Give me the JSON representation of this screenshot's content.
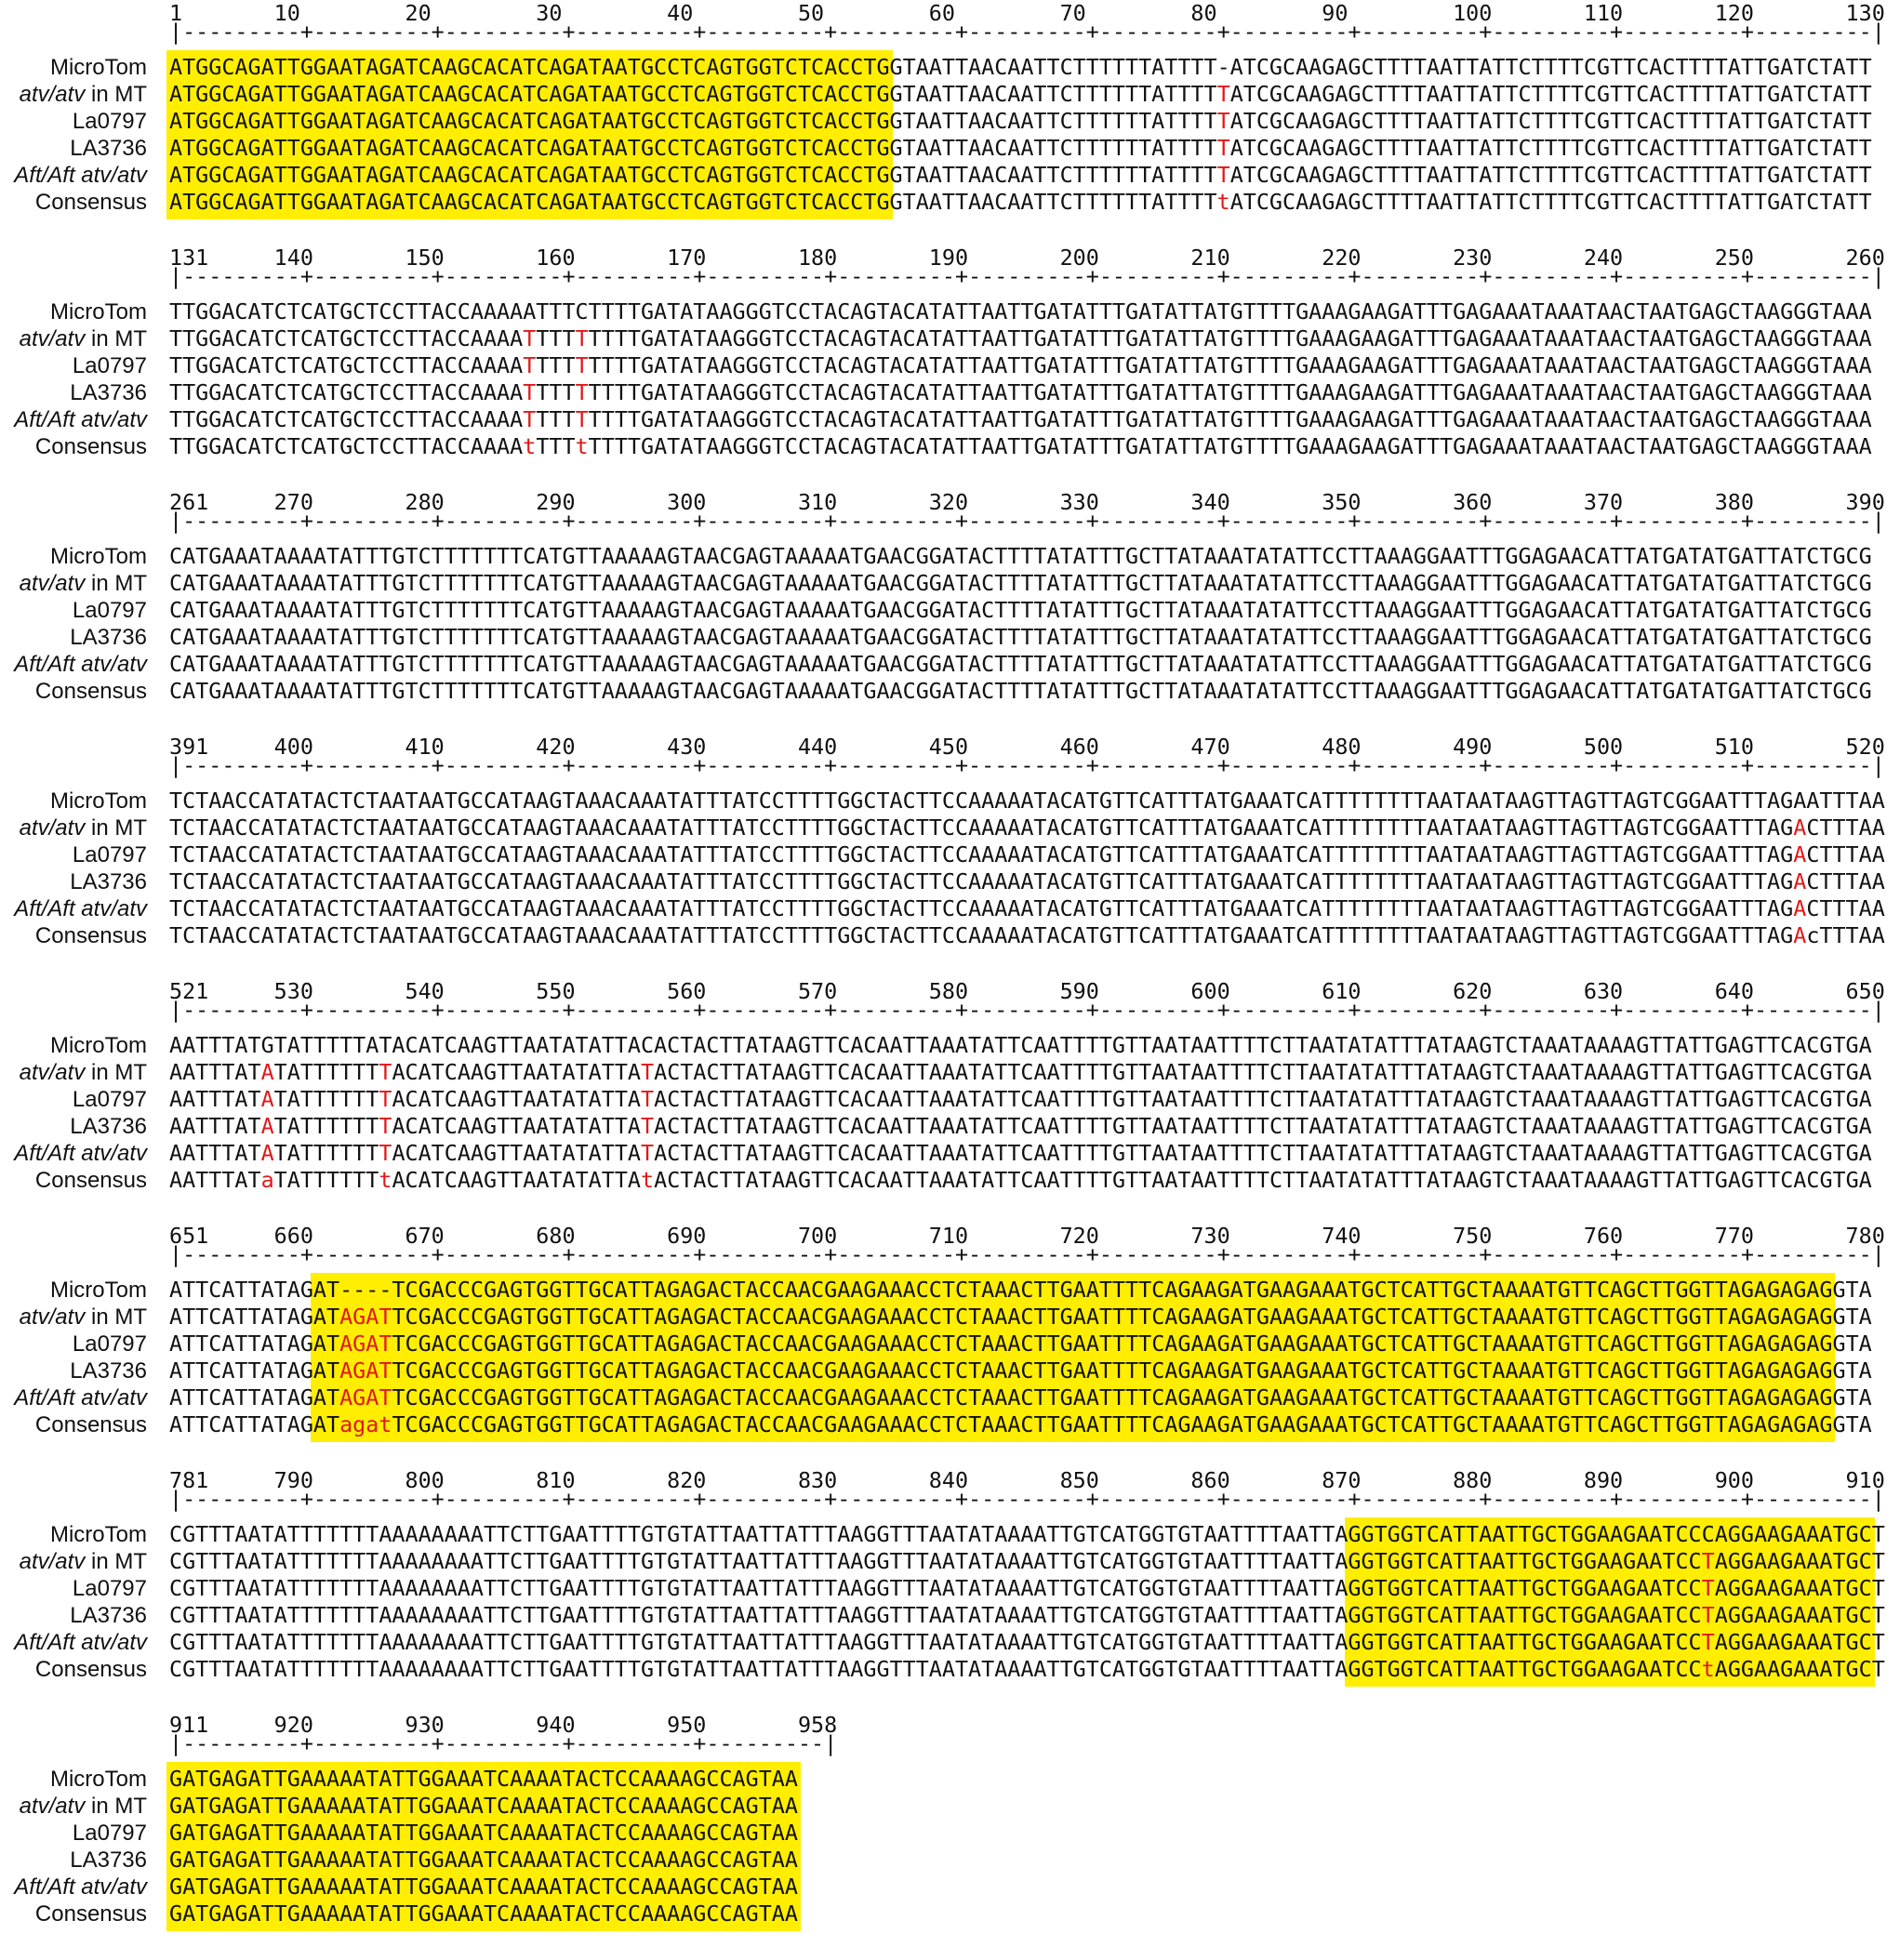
{
  "colors": {
    "highlight": "#ffee00",
    "mismatch": "#e01818",
    "text": "#111111"
  },
  "labels": [
    {
      "name": "MicroTom",
      "rest": ""
    },
    {
      "name": "atv/atv",
      "rest": " in MT"
    },
    {
      "name": "La0797",
      "rest": ""
    },
    {
      "name": "LA3736",
      "rest": ""
    },
    {
      "name": "Aft/Aft atv/atv",
      "rest": ""
    },
    {
      "name": "Consensus",
      "rest": ""
    }
  ],
  "blocks": [
    {
      "numbers": "1       10        20        30        40        50        60        70        80        90        100       110       120       130",
      "ruler": "|---------+---------+---------+---------+---------+---------+---------+---------+---------+---------+---------+---------+---------|",
      "rows": [
        "ATGGCAGATTGGAATAGATCAAGCACATCAGATAATGCCTCAGTGGTCTCACCTGGTAATTAACAATTCTTTTTTATTTT-ATCGCAAGAGCTTTTAATTATTCTTTTCGTTCACTTTTATTGATCTATT",
        "ATGGCAGATTGGAATAGATCAAGCACATCAGATAATGCCTCAGTGGTCTCACCTGGTAATTAACAATTCTTTTTTATTTTTATCGCAAGAGCTTTTAATTATTCTTTTCGTTCACTTTTATTGATCTATT",
        "ATGGCAGATTGGAATAGATCAAGCACATCAGATAATGCCTCAGTGGTCTCACCTGGTAATTAACAATTCTTTTTTATTTTTATCGCAAGAGCTTTTAATTATTCTTTTCGTTCACTTTTATTGATCTATT",
        "ATGGCAGATTGGAATAGATCAAGCACATCAGATAATGCCTCAGTGGTCTCACCTGGTAATTAACAATTCTTTTTTATTTTTATCGCAAGAGCTTTTAATTATTCTTTTCGTTCACTTTTATTGATCTATT",
        "ATGGCAGATTGGAATAGATCAAGCACATCAGATAATGCCTCAGTGGTCTCACCTGGTAATTAACAATTCTTTTTTATTTTTATCGCAAGAGCTTTTAATTATTCTTTTCGTTCACTTTTATTGATCTATT",
        "ATGGCAGATTGGAATAGATCAAGCACATCAGATAATGCCTCAGTGGTCTCACCTGGTAATTAACAATTCTTTTTTATTTTtATCGCAAGAGCTTTTAATTATTCTTTTCGTTCACTTTTATTGATCTATT"
      ],
      "red_cols": [
        80
      ],
      "exons": [
        [
          0,
          55
        ]
      ]
    },
    {
      "numbers": "131     140       150       160       170       180       190       200       210       220       230       240       250       260",
      "ruler": "|---------+---------+---------+---------+---------+---------+---------+---------+---------+---------+---------+---------+---------|",
      "rows": [
        "TTGGACATCTCATGCTCCTTACCAAAAATTTCTTTTGATATAAGGGTCCTACAGTACATATTAATTGATATTTGATATTATGTTTTGAAAGAAGATTTGAGAAATAAATAACTAATGAGCTAAGGGTAAA",
        "TTGGACATCTCATGCTCCTTACCAAAATTTTTTTTTGATATAAGGGTCCTACAGTACATATTAATTGATATTTGATATTATGTTTTGAAAGAAGATTTGAGAAATAAATAACTAATGAGCTAAGGGTAAA",
        "TTGGACATCTCATGCTCCTTACCAAAATTTTTTTTTGATATAAGGGTCCTACAGTACATATTAATTGATATTTGATATTATGTTTTGAAAGAAGATTTGAGAAATAAATAACTAATGAGCTAAGGGTAAA",
        "TTGGACATCTCATGCTCCTTACCAAAATTTTTTTTTGATATAAGGGTCCTACAGTACATATTAATTGATATTTGATATTATGTTTTGAAAGAAGATTTGAGAAATAAATAACTAATGAGCTAAGGGTAAA",
        "TTGGACATCTCATGCTCCTTACCAAAATTTTTTTTTGATATAAGGGTCCTACAGTACATATTAATTGATATTTGATATTATGTTTTGAAAGAAGATTTGAGAAATAAATAACTAATGAGCTAAGGGTAAA",
        "TTGGACATCTCATGCTCCTTACCAAAAtTTTtTTTTGATATAAGGGTCCTACAGTACATATTAATTGATATTTGATATTATGTTTTGAAAGAAGATTTGAGAAATAAATAACTAATGAGCTAAGGGTAAA"
      ],
      "red_cols": [
        27,
        31
      ],
      "exons": []
    },
    {
      "numbers": "261     270       280       290       300       310       320       330       340       350       360       370       380       390",
      "ruler": "|---------+---------+---------+---------+---------+---------+---------+---------+---------+---------+---------+---------+---------|",
      "rows": [
        "CATGAAATAAAATATTTGTCTTTTTTTCATGTTAAAAAGTAACGAGTAAAAATGAACGGATACTTTTATATTTGCTTATAAATATATTCCTTAAAGGAATTTGGAGAACATTATGATATGATTATCTGCG",
        "CATGAAATAAAATATTTGTCTTTTTTTCATGTTAAAAAGTAACGAGTAAAAATGAACGGATACTTTTATATTTGCTTATAAATATATTCCTTAAAGGAATTTGGAGAACATTATGATATGATTATCTGCG",
        "CATGAAATAAAATATTTGTCTTTTTTTCATGTTAAAAAGTAACGAGTAAAAATGAACGGATACTTTTATATTTGCTTATAAATATATTCCTTAAAGGAATTTGGAGAACATTATGATATGATTATCTGCG",
        "CATGAAATAAAATATTTGTCTTTTTTTCATGTTAAAAAGTAACGAGTAAAAATGAACGGATACTTTTATATTTGCTTATAAATATATTCCTTAAAGGAATTTGGAGAACATTATGATATGATTATCTGCG",
        "CATGAAATAAAATATTTGTCTTTTTTTCATGTTAAAAAGTAACGAGTAAAAATGAACGGATACTTTTATATTTGCTTATAAATATATTCCTTAAAGGAATTTGGAGAACATTATGATATGATTATCTGCG",
        "CATGAAATAAAATATTTGTCTTTTTTTCATGTTAAAAAGTAACGAGTAAAAATGAACGGATACTTTTATATTTGCTTATAAATATATTCCTTAAAGGAATTTGGAGAACATTATGATATGATTATCTGCG"
      ],
      "red_cols": [],
      "exons": []
    },
    {
      "numbers": "391     400       410       420       430       440       450       460       470       480       490       500       510       520",
      "ruler": "|---------+---------+---------+---------+---------+---------+---------+---------+---------+---------+---------+---------+---------|",
      "rows": [
        "TCTAACCATATACTCTAATAATGCCATAAGTAAACAAATATTTATCCTTTTGGCTACTTCCAAAAATACATGTTCATTTATGAAATCATTTTTTTTAATAATAAGTTAGTTAGTCGGAATTTAGAATTTAA",
        "TCTAACCATATACTCTAATAATGCCATAAGTAAACAAATATTTATCCTTTTGGCTACTTCCAAAAATACATGTTCATTTATGAAATCATTTTTTTTAATAATAAGTTAGTTAGTCGGAATTTAGACTTTAA",
        "TCTAACCATATACTCTAATAATGCCATAAGTAAACAAATATTTATCCTTTTGGCTACTTCCAAAAATACATGTTCATTTATGAAATCATTTTTTTTAATAATAAGTTAGTTAGTCGGAATTTAGACTTTAA",
        "TCTAACCATATACTCTAATAATGCCATAAGTAAACAAATATTTATCCTTTTGGCTACTTCCAAAAATACATGTTCATTTATGAAATCATTTTTTTTAATAATAAGTTAGTTAGTCGGAATTTAGACTTTAA",
        "TCTAACCATATACTCTAATAATGCCATAAGTAAACAAATATTTATCCTTTTGGCTACTTCCAAAAATACATGTTCATTTATGAAATCATTTTTTTTAATAATAAGTTAGTTAGTCGGAATTTAGACTTTAA",
        "TCTAACCATATACTCTAATAATGCCATAAGTAAACAAATATTTATCCTTTTGGCTACTTCCAAAAATACATGTTCATTTATGAAATCATTTTTTTTAATAATAAGTTAGTTAGTCGGAATTTAGAcTTTAA"
      ],
      "red_cols": [
        124
      ],
      "exons": []
    },
    {
      "numbers": "521     530       540       550       560       570       580       590       600       610       620       630       640       650",
      "ruler": "|---------+---------+---------+---------+---------+---------+---------+---------+---------+---------+---------+---------+---------|",
      "rows": [
        "AATTTATGTATTTTTATACATCAAGTTAATATATTACACTACTTATAAGTTCACAATTAAATATTCAATTTTGTTAATAATTTTCTTAATATATTTATAAGTCTAAATAAAAGTTATTGAGTTCACGTGA",
        "AATTTATATATTTTTTTACATCAAGTTAATATATTATACTACTTATAAGTTCACAATTAAATATTCAATTTTGTTAATAATTTTCTTAATATATTTATAAGTCTAAATAAAAGTTATTGAGTTCACGTGA",
        "AATTTATATATTTTTTTACATCAAGTTAATATATTATACTACTTATAAGTTCACAATTAAATATTCAATTTTGTTAATAATTTTCTTAATATATTTATAAGTCTAAATAAAAGTTATTGAGTTCACGTGA",
        "AATTTATATATTTTTTTACATCAAGTTAATATATTATACTACTTATAAGTTCACAATTAAATATTCAATTTTGTTAATAATTTTCTTAATATATTTATAAGTCTAAATAAAAGTTATTGAGTTCACGTGA",
        "AATTTATATATTTTTTTACATCAAGTTAATATATTATACTACTTATAAGTTCACAATTAAATATTCAATTTTGTTAATAATTTTCTTAATATATTTATAAGTCTAAATAAAAGTTATTGAGTTCACGTGA",
        "AATTTATaTATTTTTTtACATCAAGTTAATATATTAtACTACTTATAAGTTCACAATTAAATATTCAATTTTGTTAATAATTTTCTTAATATATTTATAAGTCTAAATAAAAGTTATTGAGTTCACGTGA"
      ],
      "red_cols": [
        7,
        16,
        36
      ],
      "exons": []
    },
    {
      "numbers": "651     660       670       680       690       700       710       720       730       740       750       760       770       780",
      "ruler": "|---------+---------+---------+---------+---------+---------+---------+---------+---------+---------+---------+---------+---------|",
      "rows": [
        "ATTCATTATAGAT----TCGACCCGAGTGGTTGCATTAGAGACTACCAACGAAGAAACCTCTAAACTTGAATTTTCAGAAGATGAAGAAATGCTCATTGCTAAAATGTTCAGCTTGGTTAGAGAGAGGTA",
        "ATTCATTATAGATAGATTCGACCCGAGTGGTTGCATTAGAGACTACCAACGAAGAAACCTCTAAACTTGAATTTTCAGAAGATGAAGAAATGCTCATTGCTAAAATGTTCAGCTTGGTTAGAGAGAGGTA",
        "ATTCATTATAGATAGATTCGACCCGAGTGGTTGCATTAGAGACTACCAACGAAGAAACCTCTAAACTTGAATTTTCAGAAGATGAAGAAATGCTCATTGCTAAAATGTTCAGCTTGGTTAGAGAGAGGTA",
        "ATTCATTATAGATAGATTCGACCCGAGTGGTTGCATTAGAGACTACCAACGAAGAAACCTCTAAACTTGAATTTTCAGAAGATGAAGAAATGCTCATTGCTAAAATGTTCAGCTTGGTTAGAGAGAGGTA",
        "ATTCATTATAGATAGATTCGACCCGAGTGGTTGCATTAGAGACTACCAACGAAGAAACCTCTAAACTTGAATTTTCAGAAGATGAAGAAATGCTCATTGCTAAAATGTTCAGCTTGGTTAGAGAGAGGTA",
        "ATTCATTATAGATagatTCGACCCGAGTGGTTGCATTAGAGACTACCAACGAAGAAACCTCTAAACTTGAATTTTCAGAAGATGAAGAAATGCTCATTGCTAAAATGTTCAGCTTGGTTAGAGAGAGGTA"
      ],
      "red_cols": [
        13,
        14,
        15,
        16
      ],
      "exons": [
        [
          11,
          127
        ]
      ]
    },
    {
      "numbers": "781     790       800       810       820       830       840       850       860       870       880       890       900       910",
      "ruler": "|---------+---------+---------+---------+---------+---------+---------+---------+---------+---------+---------+---------+---------|",
      "rows": [
        "CGTTTAATATTTTTTTAAAAAAAATTCTTGAATTTTGTGTATTAATTATTTAAGGTTTAATATAAAATTGTCATGGTGTAATTTTAATTAGGTGGTCATTAATTGCTGGAAGAATCCCAGGAAGAAATGCT",
        "CGTTTAATATTTTTTTAAAAAAAATTCTTGAATTTTGTGTATTAATTATTTAAGGTTTAATATAAAATTGTCATGGTGTAATTTTAATTAGGTGGTCATTAATTGCTGGAAGAATCCTAGGAAGAAATGCT",
        "CGTTTAATATTTTTTTAAAAAAAATTCTTGAATTTTGTGTATTAATTATTTAAGGTTTAATATAAAATTGTCATGGTGTAATTTTAATTAGGTGGTCATTAATTGCTGGAAGAATCCTAGGAAGAAATGCT",
        "CGTTTAATATTTTTTTAAAAAAAATTCTTGAATTTTGTGTATTAATTATTTAAGGTTTAATATAAAATTGTCATGGTGTAATTTTAATTAGGTGGTCATTAATTGCTGGAAGAATCCTAGGAAGAAATGCT",
        "CGTTTAATATTTTTTTAAAAAAAATTCTTGAATTTTGTGTATTAATTATTTAAGGTTTAATATAAAATTGTCATGGTGTAATTTTAATTAGGTGGTCATTAATTGCTGGAAGAATCCTAGGAAGAAATGCT",
        "CGTTTAATATTTTTTTAAAAAAAATTCTTGAATTTTGTGTATTAATTATTTAAGGTTTAATATAAAATTGTCATGGTGTAATTTTAATTAGGTGGTCATTAATTGCTGGAAGAATCCtAGGAAGAAATGCT"
      ],
      "red_cols": [
        117
      ],
      "exons": [
        [
          90,
          130
        ]
      ]
    },
    {
      "numbers": "911     920       930       940       950       958",
      "ruler": "|---------+---------+---------+---------+---------|",
      "rows": [
        "GATGAGATTGAAAAATATTGGAAATCAAAATACTCCAAAAGCCAGTAA",
        "GATGAGATTGAAAAATATTGGAAATCAAAATACTCCAAAAGCCAGTAA",
        "GATGAGATTGAAAAATATTGGAAATCAAAATACTCCAAAAGCCAGTAA",
        "GATGAGATTGAAAAATATTGGAAATCAAAATACTCCAAAAGCCAGTAA",
        "GATGAGATTGAAAAATATTGGAAATCAAAATACTCCAAAAGCCAGTAA",
        "GATGAGATTGAAAAATATTGGAAATCAAAATACTCCAAAAGCCAGTAA"
      ],
      "red_cols": [],
      "exons": [
        [
          0,
          48
        ]
      ]
    }
  ]
}
